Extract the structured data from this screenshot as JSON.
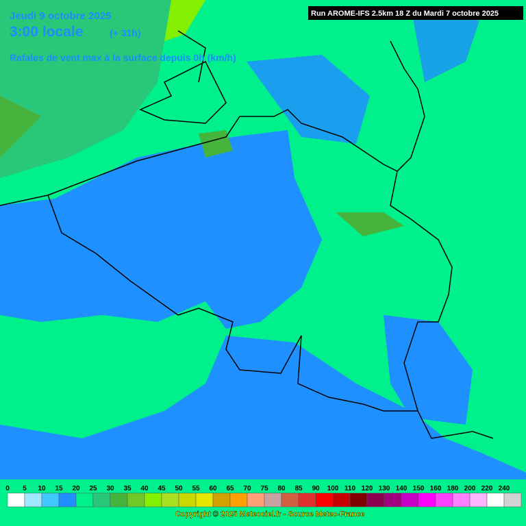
{
  "header": {
    "date": "Jeudi 9 octobre 2025",
    "time": "3:00 locale",
    "offset": "(+ 31h)",
    "parameter": "Rafales de vent max à la surface depuis 0h (km/h)",
    "run": "Run AROME-IFS 2.5km 18 Z du Mardi 7 octobre 2025"
  },
  "legend": {
    "values": [
      0,
      5,
      10,
      15,
      20,
      25,
      30,
      35,
      40,
      45,
      50,
      55,
      60,
      65,
      70,
      75,
      80,
      85,
      90,
      100,
      110,
      120,
      130,
      140,
      150,
      160,
      180,
      200,
      220,
      240
    ],
    "colors": [
      "#ffffff",
      "#a0e8ff",
      "#40c8ff",
      "#1e90ff",
      "#00f08c",
      "#28c878",
      "#46b43c",
      "#6ec828",
      "#82f000",
      "#a8e020",
      "#c8d800",
      "#e6e600",
      "#d2a000",
      "#ffa000",
      "#ffa078",
      "#c8a0a0",
      "#d06040",
      "#e03030",
      "#ff0000",
      "#c80000",
      "#800000",
      "#8c0050",
      "#a00080",
      "#c800c8",
      "#ff00ff",
      "#ff40ff",
      "#ff80ff",
      "#ffb4ff",
      "#ffffff",
      "#d2d2d2"
    ]
  },
  "footer": {
    "copyright": "Copyright © 2025 Meteociel.fr - Source Meteo-France"
  }
}
